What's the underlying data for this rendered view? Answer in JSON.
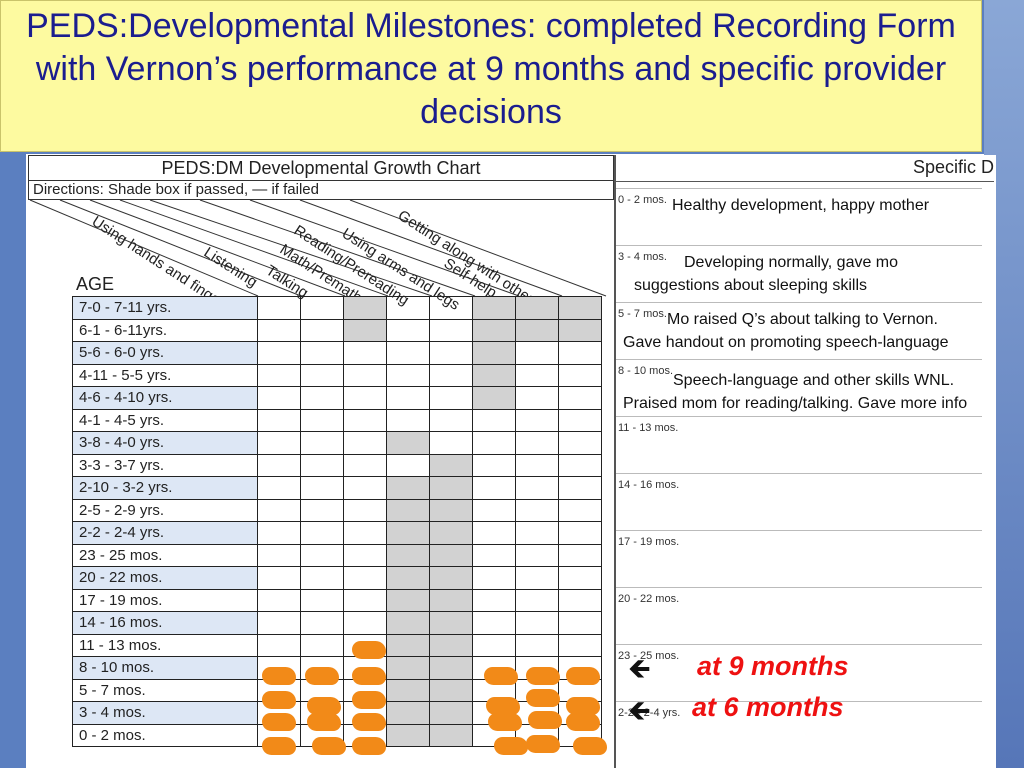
{
  "title": "PEDS:Developmental Milestones: completed Recording Form with Vernon’s performance at 9 months and specific provider decisions",
  "chart": {
    "title": "PEDS:DM Developmental Growth Chart",
    "directions": "Directions: Shade box if passed, — if failed",
    "age_header": "AGE",
    "domains": [
      "Using hands and fingers",
      "Listening",
      "Talking",
      "Math/Premath",
      "Reading/Prereading",
      "Using arms and legs",
      "Self-help",
      "Getting along with others"
    ],
    "age_rows": [
      "7-0 - 7-11 yrs.",
      "6-1 - 6-11yrs.",
      "5-6 - 6-0 yrs.",
      "4-11 - 5-5 yrs.",
      "4-6 - 4-10 yrs.",
      "4-1 - 4-5 yrs.",
      "3-8 - 4-0 yrs.",
      "3-3 - 3-7 yrs.",
      "2-10 - 3-2 yrs.",
      "2-5 - 2-9 yrs.",
      "2-2 - 2-4 yrs.",
      "23 - 25 mos.",
      "20 - 22 mos.",
      "17 - 19 mos.",
      "14 - 16 mos.",
      "11 - 13 mos.",
      "8 - 10 mos.",
      "5 - 7 mos.",
      "3 - 4 mos.",
      "0 - 2 mos."
    ]
  },
  "decisions": {
    "title": "Specific D",
    "rows": [
      "0 - 2 mos.",
      "3 - 4 mos.",
      "5 - 7 mos.",
      "8 - 10 mos.",
      "11 - 13 mos.",
      "14 - 16 mos.",
      "17 - 19 mos.",
      "20 - 22 mos.",
      "23 - 25 mos.",
      "2-2 - 2-4 yrs."
    ],
    "notes": [
      "Healthy development, happy mother",
      "Developing normally, gave mo suggestions about sleeping skills",
      "Mo raised Q’s about talking to Vernon. Gave handout on promoting speech-language",
      "Speech-language and other skills WNL. Praised mom for reading/talking. Gave more info"
    ]
  },
  "annotations": {
    "arrow": "🡸",
    "at_9": "at 9 months",
    "at_6": "at 6 months"
  },
  "colors": {
    "title_bg": "#fdfaa0",
    "title_text": "#1b1d8f",
    "marker": "#f28a18",
    "annotation": "#e11111"
  }
}
